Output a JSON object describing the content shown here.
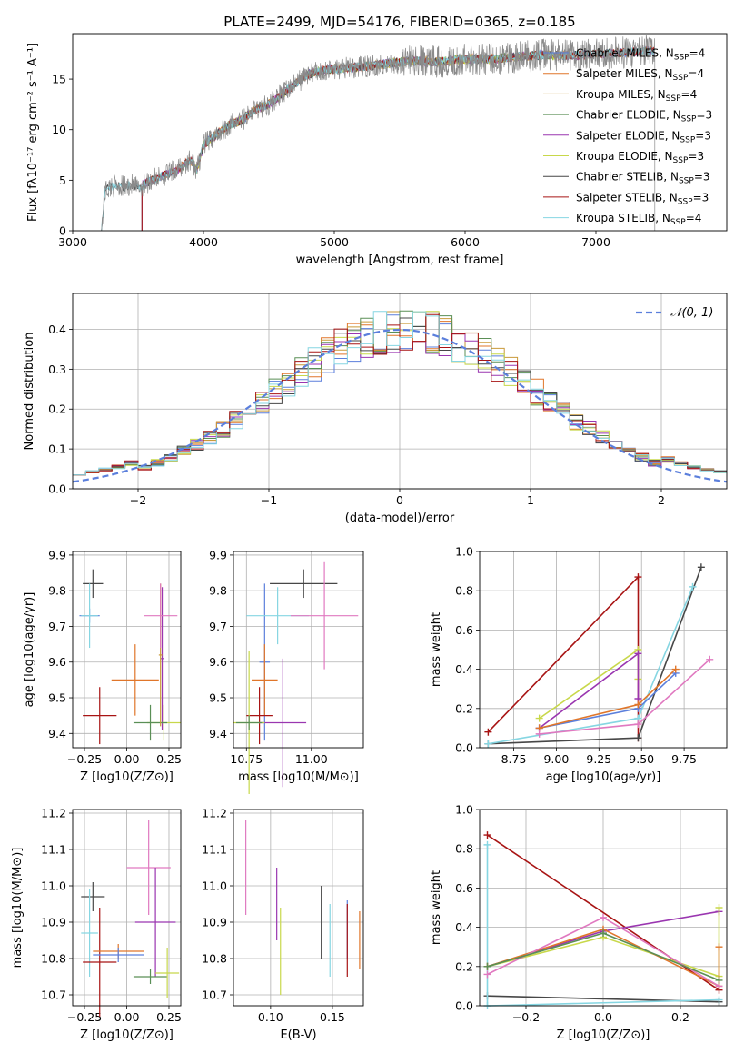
{
  "figure_title": "PLATE=2499, MJD=54176, FIBERID=0365, z=0.185",
  "models": [
    {
      "label": "Chabrier MILES",
      "nssp": "4",
      "color": "#5b7fdc"
    },
    {
      "label": "Salpeter MILES",
      "nssp": "4",
      "color": "#e0762a"
    },
    {
      "label": "Kroupa MILES",
      "nssp": "4",
      "color": "#c99a3a"
    },
    {
      "label": "Chabrier ELODIE",
      "nssp": "3",
      "color": "#5a8f56"
    },
    {
      "label": "Salpeter ELODIE",
      "nssp": "3",
      "color": "#9a36b0"
    },
    {
      "label": "Kroupa ELODIE",
      "nssp": "3",
      "color": "#c8d84a"
    },
    {
      "label": "Chabrier STELIB",
      "nssp": "3",
      "color": "#474747"
    },
    {
      "label": "Salpeter STELIB",
      "nssp": "3",
      "color": "#a81414"
    },
    {
      "label": "Kroupa STELIB",
      "nssp": "4",
      "color": "#86d6e2"
    }
  ],
  "nssp_prefix": "N",
  "nssp_sub": "SSP",
  "extra_colors": {
    "pink": "#e079c0",
    "gray": "#8a8a8a",
    "grid": "#b0b0b0"
  },
  "chart_data": [
    {
      "type": "line",
      "xlabel": "wavelength [Angstrom, rest frame]",
      "ylabel": "Flux [fλ10⁻¹⁷ erg cm⁻² s⁻¹ A⁻¹]",
      "xlim": [
        3000,
        8000
      ],
      "ylim": [
        0,
        19.5
      ],
      "xticks": [
        "3000",
        "4000",
        "5000",
        "6000",
        "7000"
      ],
      "xtick_values": [
        3000,
        4000,
        5000,
        6000,
        7000
      ],
      "yticks": [
        "0",
        "5",
        "10",
        "15"
      ],
      "ytick_values": [
        0,
        5,
        10,
        15
      ],
      "grid": false,
      "legend": "upper right",
      "data_curve": {
        "x": [
          3220,
          3250,
          3300,
          3350,
          3400,
          3450,
          3500,
          3600,
          3700,
          3800,
          3900,
          3950,
          4000,
          4100,
          4200,
          4300,
          4400,
          4500,
          4600,
          4700,
          4800,
          4900,
          5000,
          5200,
          5400,
          5600,
          5800,
          6000,
          6200,
          6400,
          6600,
          6800,
          7000,
          7200,
          7400
        ],
        "y": [
          0,
          4,
          4.4,
          4.5,
          4.3,
          4.6,
          4.2,
          5,
          5.5,
          6,
          7,
          6,
          8.5,
          9.5,
          10.5,
          11,
          12,
          12.5,
          13.5,
          14.5,
          15.5,
          15.8,
          16,
          16.2,
          16.5,
          16.8,
          16.7,
          17,
          17,
          17.2,
          17.4,
          17.3,
          17.5,
          17.6,
          17.8
        ]
      }
    },
    {
      "type": "histogram",
      "xlabel": "(data-model)/error",
      "ylabel": "Normed distribution",
      "xlim": [
        -2.5,
        2.5
      ],
      "ylim": [
        0,
        0.49
      ],
      "xticks": [
        "−2",
        "−1",
        "0",
        "1",
        "2"
      ],
      "xtick_values": [
        -2,
        -1,
        0,
        1,
        2
      ],
      "yticks": [
        "0.0",
        "0.1",
        "0.2",
        "0.3",
        "0.4"
      ],
      "ytick_values": [
        0,
        0.1,
        0.2,
        0.3,
        0.4
      ],
      "grid": true,
      "legend": "upper right",
      "normal_label": "𝒩(0, 1)",
      "bin_width": 0.1
    },
    {
      "type": "scatter",
      "xlabel": "Z [log10(Z/Z⊙)]",
      "ylabel": "age  [log10(age/yr)]",
      "xlim": [
        -0.32,
        0.32
      ],
      "ylim": [
        9.36,
        9.91
      ],
      "xticks": [
        "−0.25",
        "0.00",
        "0.25"
      ],
      "xtick_values": [
        -0.25,
        0,
        0.25
      ],
      "yticks": [
        "9.4",
        "9.5",
        "9.6",
        "9.7",
        "9.8",
        "9.9"
      ],
      "ytick_values": [
        9.4,
        9.5,
        9.6,
        9.7,
        9.8,
        9.9
      ],
      "grid": true,
      "points": [
        {
          "model": 0,
          "x": -0.22,
          "y": 9.73,
          "xerr": 0.06,
          "yerr": 0.02
        },
        {
          "model": 1,
          "x": 0.05,
          "y": 9.55,
          "xerr": 0.14,
          "yerr": 0.1
        },
        {
          "model": 6,
          "x": -0.2,
          "y": 9.82,
          "xerr": 0.06,
          "yerr": 0.04
        },
        {
          "model": 7,
          "x": -0.16,
          "y": 9.45,
          "xerr": 0.1,
          "yerr": 0.08
        },
        {
          "model": 8,
          "x": -0.22,
          "y": 9.73,
          "xerr": 0.05,
          "yerr": 0.09
        },
        {
          "model": 4,
          "x": 0.21,
          "y": 9.61,
          "xerr": 0.01,
          "yerr": 0.2
        },
        {
          "model": 5,
          "x": 0.22,
          "y": 9.43,
          "xerr": 0.1,
          "yerr": 0.05
        },
        {
          "model": 3,
          "x": 0.14,
          "y": 9.43,
          "xerr": 0.1,
          "yerr": 0.05
        },
        {
          "model": 2,
          "x": 0.2,
          "y": 9.62,
          "xerr": 0.01,
          "yerr": 0.2
        },
        {
          "model": 9,
          "x": 0.2,
          "y": 9.73,
          "xerr": 0.1,
          "yerr": 0.09
        }
      ]
    },
    {
      "type": "scatter",
      "xlabel": "mass [log10(M/M⊙)]",
      "ylabel": "",
      "xlim": [
        10.7,
        11.2
      ],
      "ylim": [
        9.36,
        9.91
      ],
      "xticks": [
        "10.75",
        "11.00"
      ],
      "xtick_values": [
        10.75,
        11.0
      ],
      "yticks": [
        "9.4",
        "9.5",
        "9.6",
        "9.7",
        "9.8",
        "9.9"
      ],
      "ytick_values": [
        9.4,
        9.5,
        9.6,
        9.7,
        9.8,
        9.9
      ],
      "grid": true,
      "points": [
        {
          "model": 0,
          "x": 10.82,
          "y": 9.6,
          "xerr": 0.02,
          "yerr": 0.22
        },
        {
          "model": 1,
          "x": 10.82,
          "y": 9.55,
          "xerr": 0.05,
          "yerr": 0.1
        },
        {
          "model": 6,
          "x": 10.97,
          "y": 9.82,
          "xerr": 0.13,
          "yerr": 0.04
        },
        {
          "model": 7,
          "x": 10.8,
          "y": 9.45,
          "xerr": 0.05,
          "yerr": 0.08
        },
        {
          "model": 8,
          "x": 10.87,
          "y": 9.73,
          "xerr": 0.12,
          "yerr": 0.08
        },
        {
          "model": 4,
          "x": 10.89,
          "y": 9.43,
          "xerr": 0.09,
          "yerr": 0.18
        },
        {
          "model": 5,
          "x": 10.76,
          "y": 9.43,
          "xerr": 0.06,
          "yerr": 0.2
        },
        {
          "model": 3,
          "x": 10.76,
          "y": 9.43,
          "xerr": 0.05,
          "yerr": 0.02
        },
        {
          "model": 9,
          "x": 11.05,
          "y": 9.73,
          "xerr": 0.13,
          "yerr": 0.15
        }
      ]
    },
    {
      "type": "line",
      "xlabel": "age  [log10(age/yr)]",
      "ylabel": "mass weight",
      "xlim": [
        8.55,
        10.0
      ],
      "ylim": [
        0,
        1.0
      ],
      "xticks": [
        "8.75",
        "9.00",
        "9.25",
        "9.50",
        "9.75"
      ],
      "xtick_values": [
        8.75,
        9.0,
        9.25,
        9.5,
        9.75
      ],
      "yticks": [
        "0.0",
        "0.2",
        "0.4",
        "0.6",
        "0.8",
        "1.0"
      ],
      "ytick_values": [
        0,
        0.2,
        0.4,
        0.6,
        0.8,
        1.0
      ],
      "grid": true,
      "series": [
        {
          "model": 7,
          "x": [
            8.6,
            9.48,
            9.48
          ],
          "y": [
            0.08,
            0.87,
            0.05
          ]
        },
        {
          "model": 6,
          "x": [
            8.6,
            9.48,
            9.85
          ],
          "y": [
            0.02,
            0.05,
            0.92
          ]
        },
        {
          "model": 8,
          "x": [
            8.6,
            9.48,
            9.8
          ],
          "y": [
            0.02,
            0.15,
            0.82
          ]
        },
        {
          "model": 5,
          "x": [
            8.9,
            9.48,
            9.48
          ],
          "y": [
            0.15,
            0.5,
            0.35
          ]
        },
        {
          "model": 4,
          "x": [
            8.9,
            9.48,
            9.48
          ],
          "y": [
            0.1,
            0.48,
            0.25
          ]
        },
        {
          "model": 0,
          "x": [
            8.9,
            9.48,
            9.7
          ],
          "y": [
            0.1,
            0.2,
            0.38
          ]
        },
        {
          "model": 1,
          "x": [
            8.9,
            9.48,
            9.7
          ],
          "y": [
            0.1,
            0.22,
            0.4
          ]
        },
        {
          "model": 9,
          "x": [
            8.9,
            9.48,
            9.9
          ],
          "y": [
            0.07,
            0.12,
            0.45
          ]
        }
      ]
    },
    {
      "type": "scatter",
      "xlabel": "Z [log10(Z/Z⊙)]",
      "ylabel": "mass [log10(M/M⊙)]",
      "xlim": [
        -0.32,
        0.32
      ],
      "ylim": [
        10.67,
        11.21
      ],
      "xticks": [
        "−0.25",
        "0.00",
        "0.25"
      ],
      "xtick_values": [
        -0.25,
        0,
        0.25
      ],
      "yticks": [
        "10.7",
        "10.8",
        "10.9",
        "11.0",
        "11.1",
        "11.2"
      ],
      "ytick_values": [
        10.7,
        10.8,
        10.9,
        11.0,
        11.1,
        11.2
      ],
      "grid": true,
      "points": [
        {
          "model": 6,
          "x": -0.2,
          "y": 10.97,
          "xerr": 0.07,
          "yerr": 0.04
        },
        {
          "model": 8,
          "x": -0.22,
          "y": 10.87,
          "xerr": 0.05,
          "yerr": 0.12
        },
        {
          "model": 7,
          "x": -0.16,
          "y": 10.79,
          "xerr": 0.1,
          "yerr": 0.15
        },
        {
          "model": 1,
          "x": -0.05,
          "y": 10.82,
          "xerr": 0.15,
          "yerr": 0.02
        },
        {
          "model": 0,
          "x": -0.05,
          "y": 10.81,
          "xerr": 0.15,
          "yerr": 0.02
        },
        {
          "model": 9,
          "x": 0.13,
          "y": 11.05,
          "xerr": 0.13,
          "yerr": 0.13
        },
        {
          "model": 4,
          "x": 0.17,
          "y": 10.9,
          "xerr": 0.12,
          "yerr": 0.15
        },
        {
          "model": 3,
          "x": 0.14,
          "y": 10.75,
          "xerr": 0.1,
          "yerr": 0.02
        },
        {
          "model": 5,
          "x": 0.24,
          "y": 10.76,
          "xerr": 0.07,
          "yerr": 0.07
        }
      ]
    },
    {
      "type": "scatter",
      "xlabel": "E(B-V)",
      "ylabel": "",
      "xlim": [
        0.07,
        0.175
      ],
      "ylim": [
        10.67,
        11.21
      ],
      "xticks": [
        "0.10",
        "0.15"
      ],
      "xtick_values": [
        0.1,
        0.15
      ],
      "yticks": [
        "10.7",
        "10.8",
        "10.9",
        "11.0",
        "11.1",
        "11.2"
      ],
      "ytick_values": [
        10.7,
        10.8,
        10.9,
        11.0,
        11.1,
        11.2
      ],
      "grid": true,
      "points": [
        {
          "model": 9,
          "x": 0.08,
          "y": 11.05,
          "xerr": 0,
          "yerr": 0.13
        },
        {
          "model": 4,
          "x": 0.105,
          "y": 10.95,
          "xerr": 0,
          "yerr": 0.1
        },
        {
          "model": 5,
          "x": 0.108,
          "y": 10.82,
          "xerr": 0,
          "yerr": 0.12
        },
        {
          "model": 6,
          "x": 0.141,
          "y": 10.9,
          "xerr": 0,
          "yerr": 0.1
        },
        {
          "model": 8,
          "x": 0.148,
          "y": 10.85,
          "xerr": 0,
          "yerr": 0.1
        },
        {
          "model": 0,
          "x": 0.162,
          "y": 10.88,
          "xerr": 0,
          "yerr": 0.08
        },
        {
          "model": 7,
          "x": 0.162,
          "y": 10.85,
          "xerr": 0,
          "yerr": 0.1
        },
        {
          "model": 1,
          "x": 0.172,
          "y": 10.85,
          "xerr": 0,
          "yerr": 0.08
        }
      ]
    },
    {
      "type": "line",
      "xlabel": "Z [log10(Z/Z⊙)]",
      "ylabel": "mass weight",
      "xlim": [
        -0.32,
        0.32
      ],
      "ylim": [
        0,
        1.0
      ],
      "xticks": [
        "−0.2",
        "0.0",
        "0.2"
      ],
      "xtick_values": [
        -0.2,
        0,
        0.2
      ],
      "yticks": [
        "0.0",
        "0.2",
        "0.4",
        "0.6",
        "0.8",
        "1.0"
      ],
      "ytick_values": [
        0,
        0.2,
        0.4,
        0.6,
        0.8,
        1.0
      ],
      "grid": true,
      "series": [
        {
          "model": 7,
          "x": [
            -0.3,
            0.3
          ],
          "y": [
            0.87,
            0.08
          ]
        },
        {
          "model": 6,
          "x": [
            -0.3,
            0.3
          ],
          "y": [
            0.05,
            0.02
          ]
        },
        {
          "model": 8,
          "x": [
            -0.3,
            -0.3,
            0.3
          ],
          "y": [
            0.82,
            0.0,
            0.03
          ]
        },
        {
          "model": 4,
          "x": [
            -0.3,
            0.0,
            0.3
          ],
          "y": [
            0.2,
            0.38,
            0.48
          ]
        },
        {
          "model": 5,
          "x": [
            -0.3,
            0.0,
            0.3,
            0.3
          ],
          "y": [
            0.2,
            0.35,
            0.15,
            0.5
          ]
        },
        {
          "model": 1,
          "x": [
            -0.3,
            0.0,
            0.3,
            0.3
          ],
          "y": [
            0.2,
            0.39,
            0.1,
            0.3
          ]
        },
        {
          "model": 9,
          "x": [
            -0.3,
            0.0,
            0.3
          ],
          "y": [
            0.16,
            0.45,
            0.1
          ]
        },
        {
          "model": 3,
          "x": [
            -0.3,
            0.0,
            0.3
          ],
          "y": [
            0.2,
            0.37,
            0.13
          ]
        }
      ]
    }
  ]
}
